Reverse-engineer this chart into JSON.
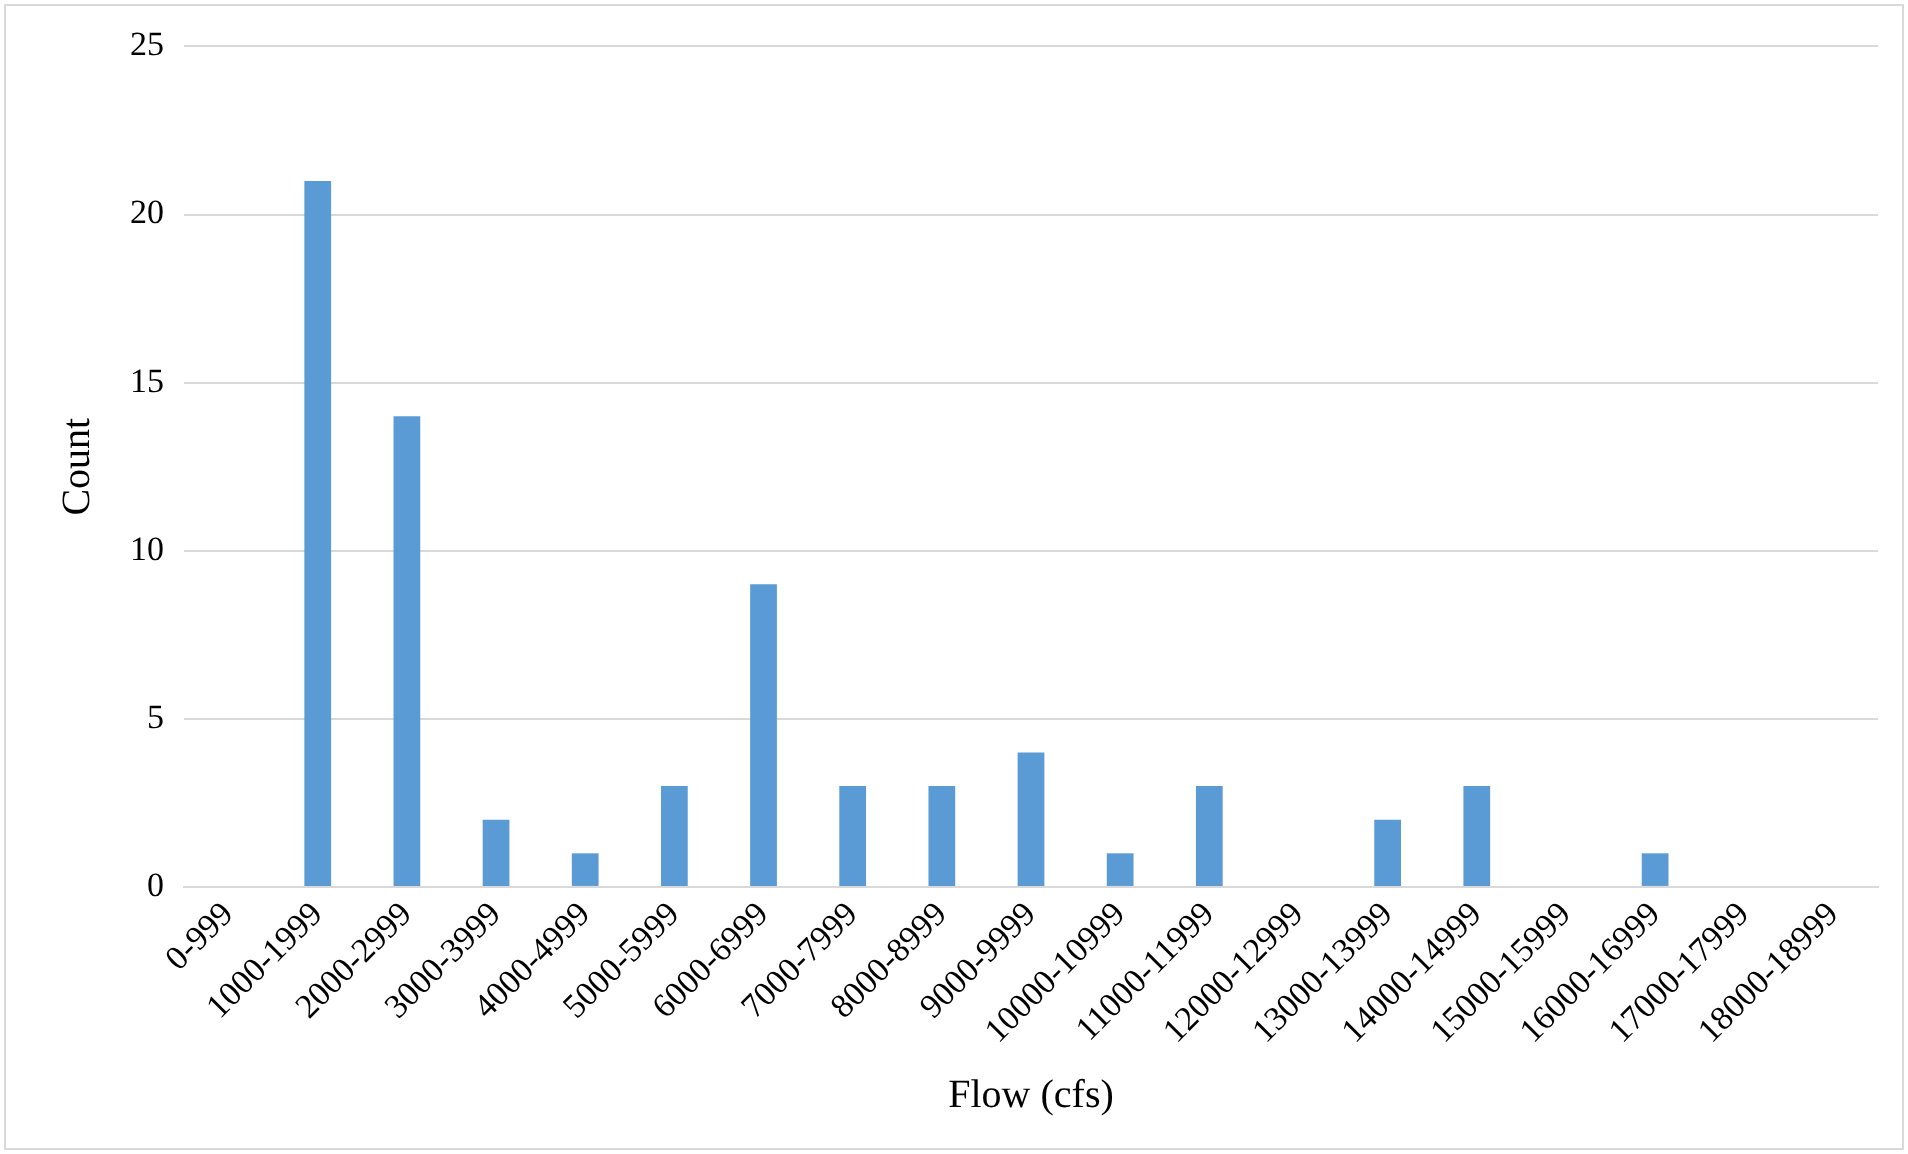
{
  "chart_data": {
    "type": "bar",
    "xlabel": "Flow (cfs)",
    "ylabel": "Count",
    "categories": [
      "0-999",
      "1000-1999",
      "2000-2999",
      "3000-3999",
      "4000-4999",
      "5000-5999",
      "6000-6999",
      "7000-7999",
      "8000-8999",
      "9000-9999",
      "10000-10999",
      "11000-11999",
      "12000-12999",
      "13000-13999",
      "14000-14999",
      "15000-15999",
      "16000-16999",
      "17000-17999",
      "18000-18999"
    ],
    "values": [
      0,
      21,
      14,
      2,
      1,
      3,
      9,
      3,
      3,
      4,
      1,
      3,
      0,
      2,
      3,
      0,
      1,
      0,
      0
    ],
    "color": "#5b9bd5",
    "ylim": [
      0,
      25
    ],
    "yticks": [
      0,
      5,
      10,
      15,
      20,
      25
    ],
    "grid": "y",
    "legend": false
  }
}
